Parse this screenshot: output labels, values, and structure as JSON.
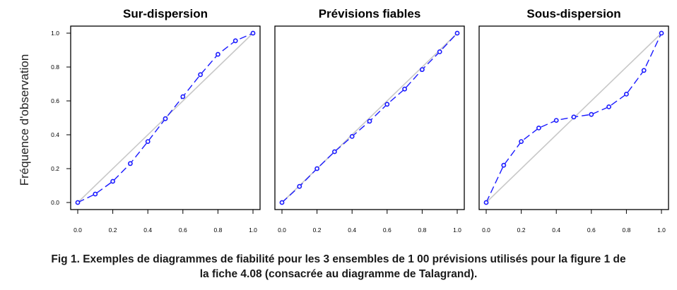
{
  "figure": {
    "ylabel": "Fréquence d'observation",
    "caption_line1": "Fig 1. Exemples de diagrammes de fiabilité pour les 3 ensembles de 1 00 prévisions utilisés pour la figure 1 de",
    "caption_line2": "la fiche 4.08 (consacrée au diagramme de Talagrand)."
  },
  "colors": {
    "series": "#1a1aff",
    "diagonal": "#c8c8c8",
    "frame": "#000000"
  },
  "chart_data": [
    {
      "type": "line",
      "title": "Sur-dispersion",
      "ylabel": "Fréquence d'observation",
      "xlim": [
        0,
        1
      ],
      "ylim": [
        0,
        1
      ],
      "xticks": [
        "0.0",
        "0.2",
        "0.4",
        "0.6",
        "0.8",
        "1.0"
      ],
      "yticks": [
        "0.0",
        "0.2",
        "0.4",
        "0.6",
        "0.8",
        "1.0"
      ],
      "x": [
        0.0,
        0.1,
        0.2,
        0.3,
        0.4,
        0.5,
        0.6,
        0.7,
        0.8,
        0.9,
        1.0
      ],
      "series": [
        {
          "values": [
            0.0,
            0.05,
            0.125,
            0.23,
            0.36,
            0.495,
            0.625,
            0.755,
            0.875,
            0.955,
            1.0
          ]
        }
      ],
      "reference_line": [
        [
          0,
          0
        ],
        [
          1,
          1
        ]
      ]
    },
    {
      "type": "line",
      "title": "Prévisions fiables",
      "xlim": [
        0,
        1
      ],
      "ylim": [
        0,
        1
      ],
      "xticks": [
        "0.0",
        "0.2",
        "0.4",
        "0.6",
        "0.8",
        "1.0"
      ],
      "x": [
        0.0,
        0.1,
        0.2,
        0.3,
        0.4,
        0.5,
        0.6,
        0.7,
        0.8,
        0.9,
        1.0
      ],
      "series": [
        {
          "values": [
            0.0,
            0.095,
            0.2,
            0.3,
            0.39,
            0.48,
            0.58,
            0.67,
            0.785,
            0.89,
            1.0
          ]
        }
      ],
      "reference_line": [
        [
          0,
          0
        ],
        [
          1,
          1
        ]
      ]
    },
    {
      "type": "line",
      "title": "Sous-dispersion",
      "xlim": [
        0,
        1
      ],
      "ylim": [
        0,
        1
      ],
      "xticks": [
        "0.0",
        "0.2",
        "0.4",
        "0.6",
        "0.8",
        "1.0"
      ],
      "x": [
        0.0,
        0.1,
        0.2,
        0.3,
        0.4,
        0.5,
        0.6,
        0.7,
        0.8,
        0.9,
        1.0
      ],
      "series": [
        {
          "values": [
            0.0,
            0.22,
            0.36,
            0.44,
            0.485,
            0.505,
            0.52,
            0.565,
            0.64,
            0.78,
            1.0
          ]
        }
      ],
      "reference_line": [
        [
          0,
          0
        ],
        [
          1,
          1
        ]
      ]
    }
  ]
}
